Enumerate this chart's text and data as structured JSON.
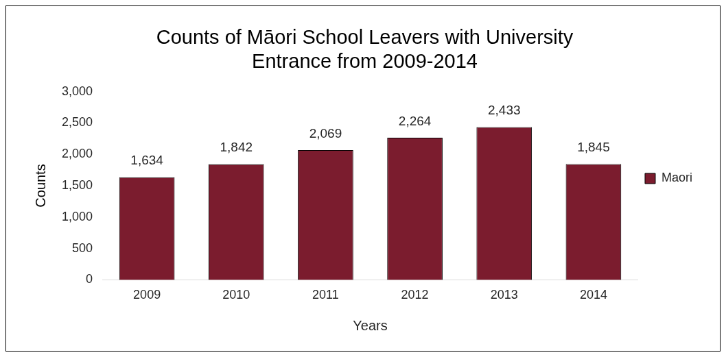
{
  "chart_data": {
    "type": "bar",
    "title": "Counts of Māori School Leavers with University Entrance from 2009-2014",
    "xlabel": "Years",
    "ylabel": "Counts",
    "categories": [
      "2009",
      "2010",
      "2011",
      "2012",
      "2013",
      "2014"
    ],
    "series": [
      {
        "name": "Maori",
        "color": "#7b1c2e",
        "values": [
          1634,
          1842,
          2069,
          2264,
          2433,
          1845
        ],
        "value_labels": [
          "1,634",
          "1,842",
          "2,069",
          "2,264",
          "2,433",
          "1,845"
        ]
      }
    ],
    "ylim": [
      0,
      3000
    ],
    "yticks": [
      0,
      500,
      {
        "value": 1000,
        "label": "1,000"
      },
      {
        "value": 1500,
        "label": "1,500"
      },
      {
        "value": 2000,
        "label": "2,000"
      },
      {
        "value": 2500,
        "label": "2,500"
      },
      {
        "value": 3000,
        "label": "3,000"
      }
    ],
    "grid": false,
    "legend": "right"
  }
}
